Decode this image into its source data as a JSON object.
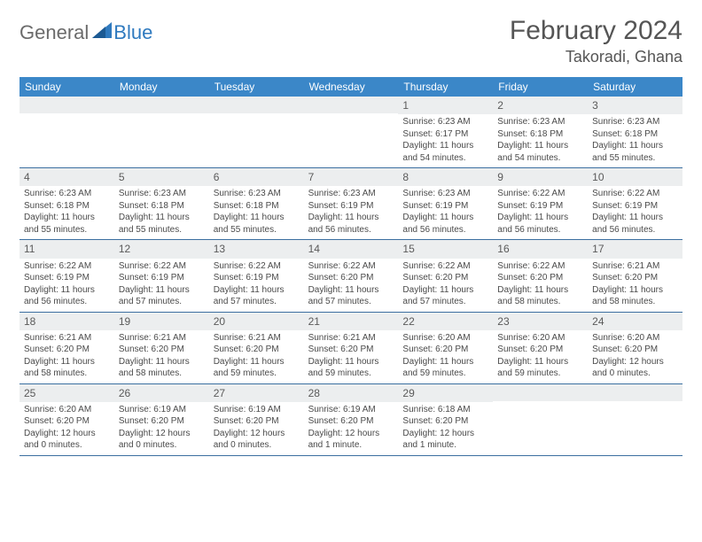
{
  "logo": {
    "general": "General",
    "blue": "Blue"
  },
  "title": "February 2024",
  "location": "Takoradi, Ghana",
  "header_bg": "#3b87c8",
  "weekdays": [
    "Sunday",
    "Monday",
    "Tuesday",
    "Wednesday",
    "Thursday",
    "Friday",
    "Saturday"
  ],
  "weeks": [
    [
      {
        "n": "",
        "sr": "",
        "ss": "",
        "dl": ""
      },
      {
        "n": "",
        "sr": "",
        "ss": "",
        "dl": ""
      },
      {
        "n": "",
        "sr": "",
        "ss": "",
        "dl": ""
      },
      {
        "n": "",
        "sr": "",
        "ss": "",
        "dl": ""
      },
      {
        "n": "1",
        "sr": "Sunrise: 6:23 AM",
        "ss": "Sunset: 6:17 PM",
        "dl": "Daylight: 11 hours and 54 minutes."
      },
      {
        "n": "2",
        "sr": "Sunrise: 6:23 AM",
        "ss": "Sunset: 6:18 PM",
        "dl": "Daylight: 11 hours and 54 minutes."
      },
      {
        "n": "3",
        "sr": "Sunrise: 6:23 AM",
        "ss": "Sunset: 6:18 PM",
        "dl": "Daylight: 11 hours and 55 minutes."
      }
    ],
    [
      {
        "n": "4",
        "sr": "Sunrise: 6:23 AM",
        "ss": "Sunset: 6:18 PM",
        "dl": "Daylight: 11 hours and 55 minutes."
      },
      {
        "n": "5",
        "sr": "Sunrise: 6:23 AM",
        "ss": "Sunset: 6:18 PM",
        "dl": "Daylight: 11 hours and 55 minutes."
      },
      {
        "n": "6",
        "sr": "Sunrise: 6:23 AM",
        "ss": "Sunset: 6:18 PM",
        "dl": "Daylight: 11 hours and 55 minutes."
      },
      {
        "n": "7",
        "sr": "Sunrise: 6:23 AM",
        "ss": "Sunset: 6:19 PM",
        "dl": "Daylight: 11 hours and 56 minutes."
      },
      {
        "n": "8",
        "sr": "Sunrise: 6:23 AM",
        "ss": "Sunset: 6:19 PM",
        "dl": "Daylight: 11 hours and 56 minutes."
      },
      {
        "n": "9",
        "sr": "Sunrise: 6:22 AM",
        "ss": "Sunset: 6:19 PM",
        "dl": "Daylight: 11 hours and 56 minutes."
      },
      {
        "n": "10",
        "sr": "Sunrise: 6:22 AM",
        "ss": "Sunset: 6:19 PM",
        "dl": "Daylight: 11 hours and 56 minutes."
      }
    ],
    [
      {
        "n": "11",
        "sr": "Sunrise: 6:22 AM",
        "ss": "Sunset: 6:19 PM",
        "dl": "Daylight: 11 hours and 56 minutes."
      },
      {
        "n": "12",
        "sr": "Sunrise: 6:22 AM",
        "ss": "Sunset: 6:19 PM",
        "dl": "Daylight: 11 hours and 57 minutes."
      },
      {
        "n": "13",
        "sr": "Sunrise: 6:22 AM",
        "ss": "Sunset: 6:19 PM",
        "dl": "Daylight: 11 hours and 57 minutes."
      },
      {
        "n": "14",
        "sr": "Sunrise: 6:22 AM",
        "ss": "Sunset: 6:20 PM",
        "dl": "Daylight: 11 hours and 57 minutes."
      },
      {
        "n": "15",
        "sr": "Sunrise: 6:22 AM",
        "ss": "Sunset: 6:20 PM",
        "dl": "Daylight: 11 hours and 57 minutes."
      },
      {
        "n": "16",
        "sr": "Sunrise: 6:22 AM",
        "ss": "Sunset: 6:20 PM",
        "dl": "Daylight: 11 hours and 58 minutes."
      },
      {
        "n": "17",
        "sr": "Sunrise: 6:21 AM",
        "ss": "Sunset: 6:20 PM",
        "dl": "Daylight: 11 hours and 58 minutes."
      }
    ],
    [
      {
        "n": "18",
        "sr": "Sunrise: 6:21 AM",
        "ss": "Sunset: 6:20 PM",
        "dl": "Daylight: 11 hours and 58 minutes."
      },
      {
        "n": "19",
        "sr": "Sunrise: 6:21 AM",
        "ss": "Sunset: 6:20 PM",
        "dl": "Daylight: 11 hours and 58 minutes."
      },
      {
        "n": "20",
        "sr": "Sunrise: 6:21 AM",
        "ss": "Sunset: 6:20 PM",
        "dl": "Daylight: 11 hours and 59 minutes."
      },
      {
        "n": "21",
        "sr": "Sunrise: 6:21 AM",
        "ss": "Sunset: 6:20 PM",
        "dl": "Daylight: 11 hours and 59 minutes."
      },
      {
        "n": "22",
        "sr": "Sunrise: 6:20 AM",
        "ss": "Sunset: 6:20 PM",
        "dl": "Daylight: 11 hours and 59 minutes."
      },
      {
        "n": "23",
        "sr": "Sunrise: 6:20 AM",
        "ss": "Sunset: 6:20 PM",
        "dl": "Daylight: 11 hours and 59 minutes."
      },
      {
        "n": "24",
        "sr": "Sunrise: 6:20 AM",
        "ss": "Sunset: 6:20 PM",
        "dl": "Daylight: 12 hours and 0 minutes."
      }
    ],
    [
      {
        "n": "25",
        "sr": "Sunrise: 6:20 AM",
        "ss": "Sunset: 6:20 PM",
        "dl": "Daylight: 12 hours and 0 minutes."
      },
      {
        "n": "26",
        "sr": "Sunrise: 6:19 AM",
        "ss": "Sunset: 6:20 PM",
        "dl": "Daylight: 12 hours and 0 minutes."
      },
      {
        "n": "27",
        "sr": "Sunrise: 6:19 AM",
        "ss": "Sunset: 6:20 PM",
        "dl": "Daylight: 12 hours and 0 minutes."
      },
      {
        "n": "28",
        "sr": "Sunrise: 6:19 AM",
        "ss": "Sunset: 6:20 PM",
        "dl": "Daylight: 12 hours and 1 minute."
      },
      {
        "n": "29",
        "sr": "Sunrise: 6:18 AM",
        "ss": "Sunset: 6:20 PM",
        "dl": "Daylight: 12 hours and 1 minute."
      },
      {
        "n": "",
        "sr": "",
        "ss": "",
        "dl": ""
      },
      {
        "n": "",
        "sr": "",
        "ss": "",
        "dl": ""
      }
    ]
  ]
}
